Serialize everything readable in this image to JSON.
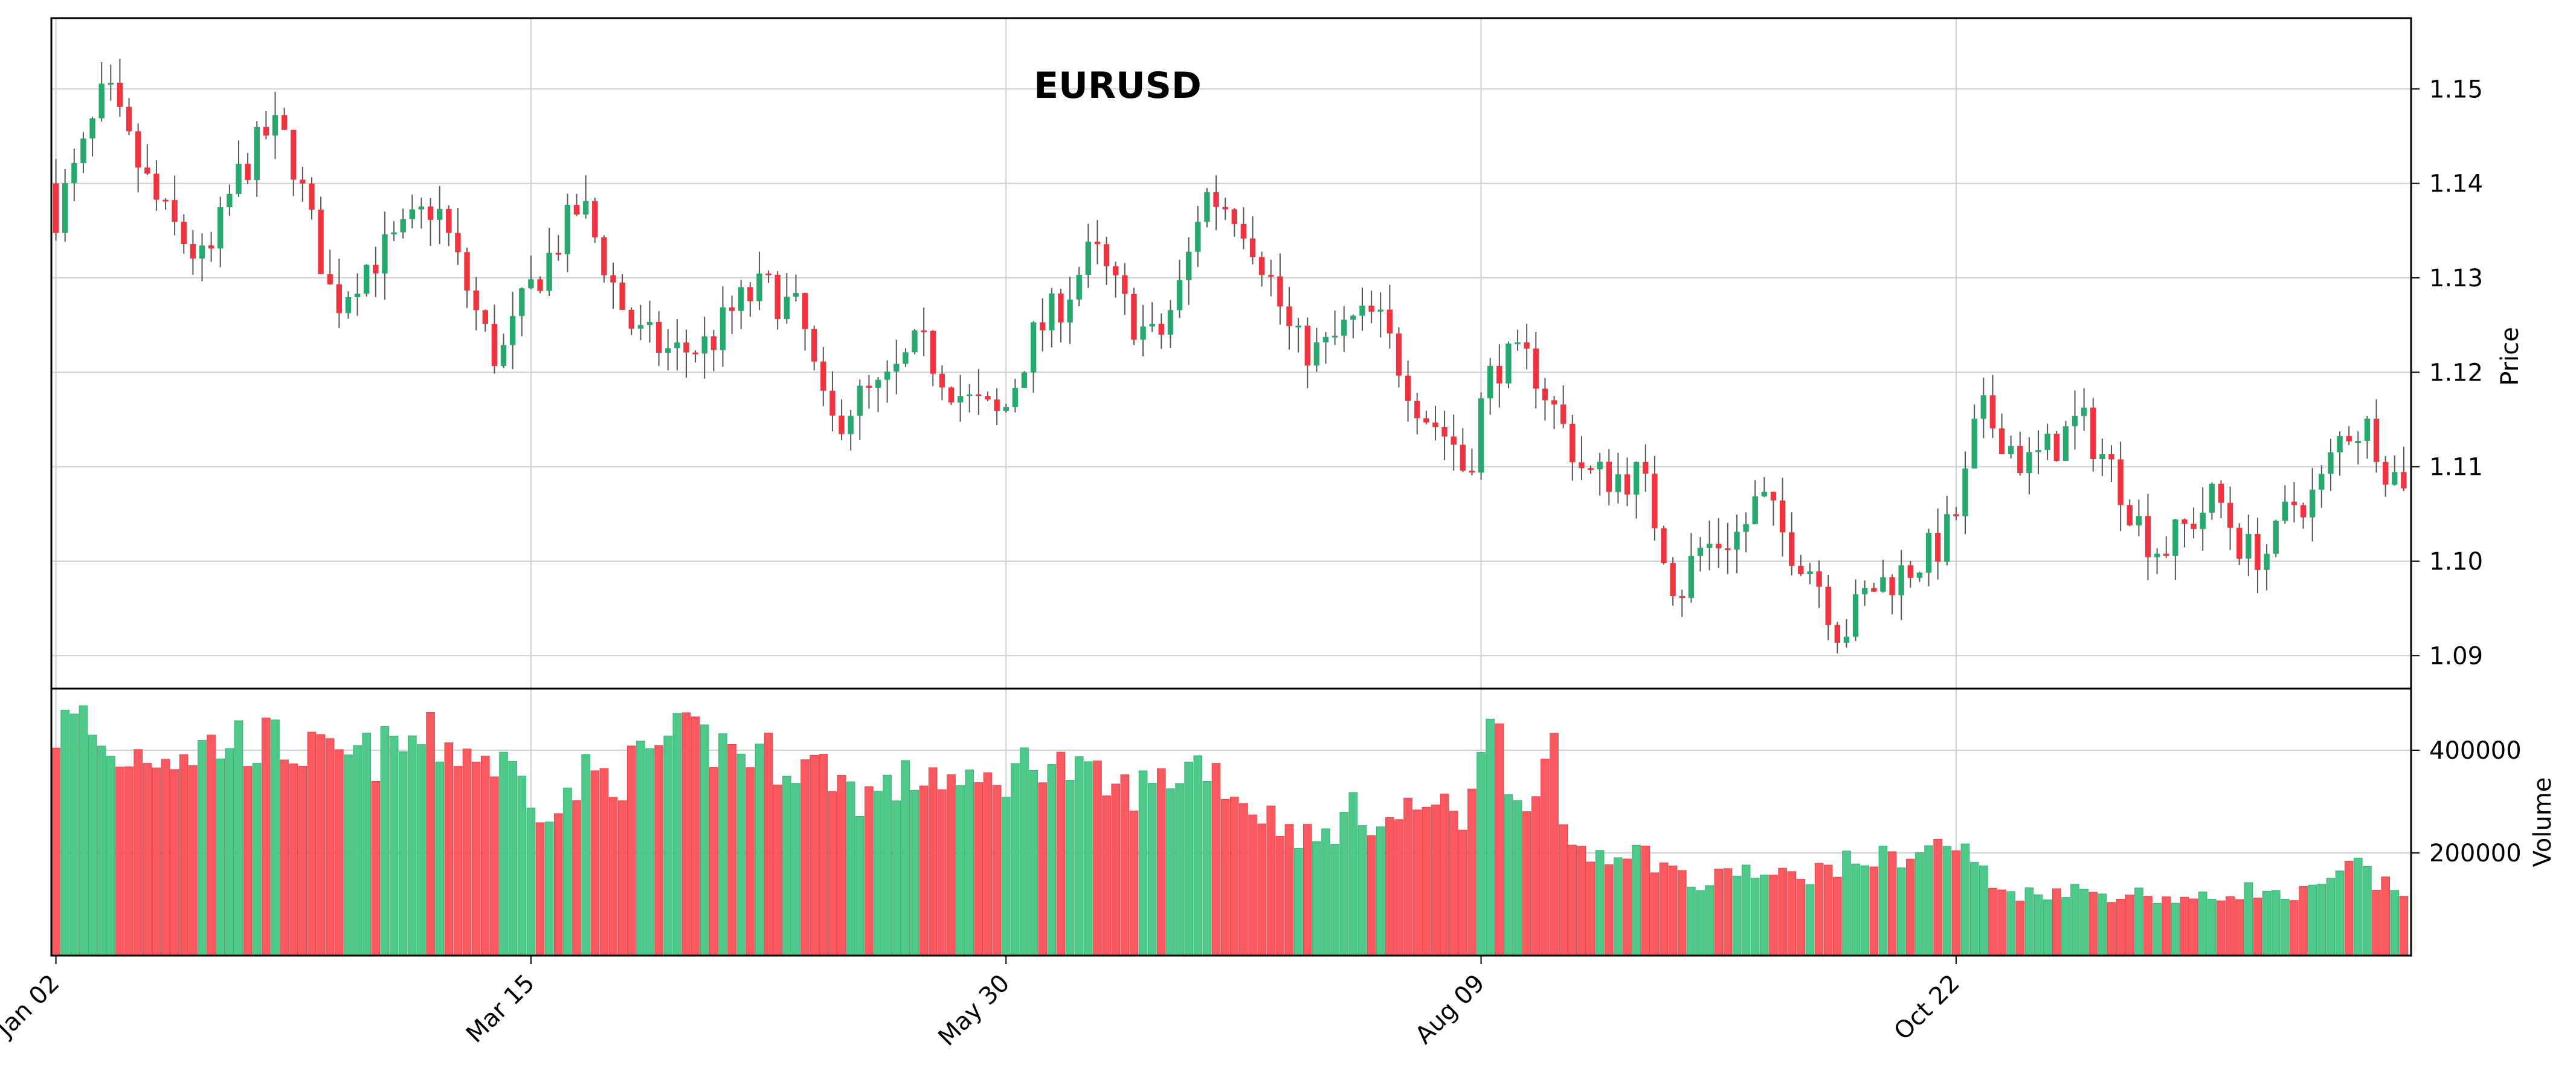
{
  "chart_data": {
    "type": "candlestick",
    "title": "EURUSD",
    "price_axis": {
      "label": "Price",
      "ylim": [
        1.0865,
        1.1575
      ],
      "ticks": [
        "1.09",
        "1.10",
        "1.11",
        "1.12",
        "1.13",
        "1.14",
        "1.15"
      ],
      "tick_values": [
        1.09,
        1.1,
        1.11,
        1.12,
        1.13,
        1.14,
        1.15
      ]
    },
    "volume_axis": {
      "label": "Volume",
      "ylim": [
        0,
        520000
      ],
      "ticks": [
        "200000",
        "400000"
      ],
      "tick_values": [
        200000,
        400000
      ]
    },
    "x_ticks": [
      {
        "label": "Jan 02",
        "index": 0
      },
      {
        "label": "Mar 15",
        "index": 52
      },
      {
        "label": "May 30",
        "index": 104
      },
      {
        "label": "Aug 09",
        "index": 156
      },
      {
        "label": "Oct 22",
        "index": 208
      }
    ],
    "grid": true,
    "colors": {
      "up": "#26a96c",
      "down": "#f0333f",
      "up_volume": "#4ec98a",
      "down_volume": "#fa5a5f",
      "wick": "#555555"
    },
    "num_candles": 258,
    "price_anchors": [
      [
        0,
        1.136
      ],
      [
        3,
        1.142
      ],
      [
        6,
        1.15
      ],
      [
        8,
        1.145
      ],
      [
        12,
        1.137
      ],
      [
        17,
        1.131
      ],
      [
        20,
        1.14
      ],
      [
        24,
        1.146
      ],
      [
        26,
        1.144
      ],
      [
        31,
        1.127
      ],
      [
        34,
        1.131
      ],
      [
        38,
        1.134
      ],
      [
        42,
        1.138
      ],
      [
        47,
        1.125
      ],
      [
        49,
        1.121
      ],
      [
        52,
        1.128
      ],
      [
        55,
        1.133
      ],
      [
        58,
        1.138
      ],
      [
        62,
        1.128
      ],
      [
        64,
        1.124
      ],
      [
        68,
        1.122
      ],
      [
        72,
        1.123
      ],
      [
        75,
        1.127
      ],
      [
        78,
        1.129
      ],
      [
        82,
        1.126
      ],
      [
        85,
        1.114
      ],
      [
        88,
        1.117
      ],
      [
        91,
        1.118
      ],
      [
        95,
        1.123
      ],
      [
        100,
        1.117
      ],
      [
        104,
        1.115
      ],
      [
        107,
        1.123
      ],
      [
        111,
        1.128
      ],
      [
        114,
        1.133
      ],
      [
        118,
        1.126
      ],
      [
        121,
        1.123
      ],
      [
        124,
        1.13
      ],
      [
        126,
        1.139
      ],
      [
        130,
        1.137
      ],
      [
        133,
        1.131
      ],
      [
        136,
        1.123
      ],
      [
        139,
        1.122
      ],
      [
        142,
        1.125
      ],
      [
        145,
        1.126
      ],
      [
        147,
        1.122
      ],
      [
        150,
        1.116
      ],
      [
        154,
        1.112
      ],
      [
        155,
        1.108
      ],
      [
        156,
        1.115
      ],
      [
        158,
        1.121
      ],
      [
        162,
        1.121
      ],
      [
        165,
        1.115
      ],
      [
        168,
        1.109
      ],
      [
        172,
        1.109
      ],
      [
        174,
        1.109
      ],
      [
        175,
        1.106
      ],
      [
        177,
        1.1
      ],
      [
        178,
        1.096
      ],
      [
        180,
        1.101
      ],
      [
        185,
        1.103
      ],
      [
        187,
        1.107
      ],
      [
        190,
        1.102
      ],
      [
        193,
        1.099
      ],
      [
        195,
        1.094
      ],
      [
        196,
        1.092
      ],
      [
        197,
        1.094
      ],
      [
        199,
        1.097
      ],
      [
        203,
        1.099
      ],
      [
        207,
        1.102
      ],
      [
        209,
        1.106
      ],
      [
        211,
        1.116
      ],
      [
        214,
        1.113
      ],
      [
        216,
        1.11
      ],
      [
        219,
        1.112
      ],
      [
        222,
        1.115
      ],
      [
        226,
        1.109
      ],
      [
        229,
        1.103
      ],
      [
        231,
        1.101
      ],
      [
        234,
        1.104
      ],
      [
        237,
        1.107
      ],
      [
        240,
        1.101
      ],
      [
        243,
        1.101
      ],
      [
        245,
        1.106
      ],
      [
        248,
        1.107
      ],
      [
        251,
        1.114
      ],
      [
        254,
        1.114
      ],
      [
        256,
        1.109
      ],
      [
        258,
        1.109
      ],
      [
        260,
        1.12
      ]
    ],
    "volume_anchors": [
      [
        0,
        440000
      ],
      [
        3,
        460000
      ],
      [
        6,
        380000
      ],
      [
        10,
        400000
      ],
      [
        15,
        400000
      ],
      [
        20,
        420000
      ],
      [
        25,
        410000
      ],
      [
        30,
        380000
      ],
      [
        35,
        390000
      ],
      [
        40,
        420000
      ],
      [
        45,
        400000
      ],
      [
        50,
        360000
      ],
      [
        53,
        300000
      ],
      [
        55,
        280000
      ],
      [
        58,
        350000
      ],
      [
        62,
        350000
      ],
      [
        66,
        410000
      ],
      [
        70,
        420000
      ],
      [
        75,
        400000
      ],
      [
        80,
        380000
      ],
      [
        85,
        360000
      ],
      [
        88,
        310000
      ],
      [
        92,
        330000
      ],
      [
        96,
        360000
      ],
      [
        100,
        320000
      ],
      [
        104,
        350000
      ],
      [
        108,
        390000
      ],
      [
        112,
        350000
      ],
      [
        116,
        320000
      ],
      [
        120,
        330000
      ],
      [
        124,
        370000
      ],
      [
        126,
        380000
      ],
      [
        130,
        300000
      ],
      [
        134,
        260000
      ],
      [
        138,
        220000
      ],
      [
        142,
        280000
      ],
      [
        146,
        260000
      ],
      [
        150,
        300000
      ],
      [
        154,
        260000
      ],
      [
        156,
        440000
      ],
      [
        158,
        420000
      ],
      [
        160,
        300000
      ],
      [
        162,
        350000
      ],
      [
        164,
        380000
      ],
      [
        165,
        230000
      ],
      [
        168,
        200000
      ],
      [
        172,
        210000
      ],
      [
        176,
        180000
      ],
      [
        180,
        130000
      ],
      [
        184,
        170000
      ],
      [
        188,
        150000
      ],
      [
        192,
        160000
      ],
      [
        196,
        180000
      ],
      [
        200,
        190000
      ],
      [
        204,
        200000
      ],
      [
        207,
        220000
      ],
      [
        210,
        190000
      ],
      [
        212,
        130000
      ],
      [
        216,
        120000
      ],
      [
        220,
        130000
      ],
      [
        224,
        120000
      ],
      [
        228,
        120000
      ],
      [
        232,
        110000
      ],
      [
        236,
        110000
      ],
      [
        240,
        130000
      ],
      [
        244,
        110000
      ],
      [
        248,
        130000
      ],
      [
        252,
        180000
      ],
      [
        254,
        140000
      ],
      [
        258,
        120000
      ],
      [
        260,
        130000
      ]
    ]
  }
}
